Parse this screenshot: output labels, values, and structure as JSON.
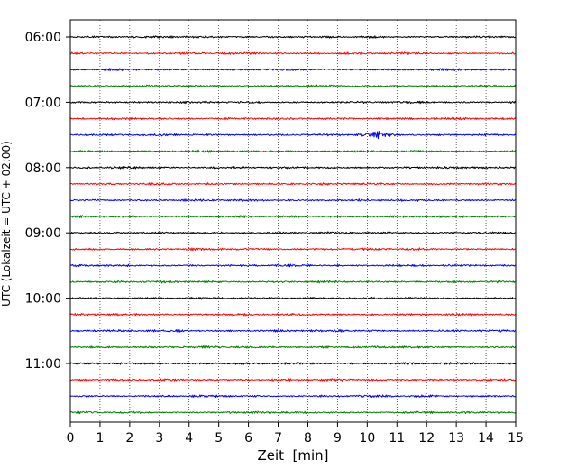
{
  "chart_data": {
    "type": "line",
    "title": "",
    "xlabel": "Zeit  [min]",
    "ylabel": "UTC (Lokalzeit = UTC + 02:00)",
    "xlim": [
      0,
      15
    ],
    "x_ticks": [
      "0",
      "1",
      "2",
      "3",
      "4",
      "5",
      "6",
      "7",
      "8",
      "9",
      "10",
      "11",
      "12",
      "13",
      "14",
      "15"
    ],
    "y_ticks": [
      "06:00",
      "07:00",
      "08:00",
      "09:00",
      "10:00",
      "11:00"
    ],
    "grid": "vertical dotted lines at each minute",
    "legend": "none",
    "trace_interval_min": 15,
    "trace_start": "06:00",
    "trace_colors": [
      "#000000",
      "#ff0000",
      "#0000ff",
      "#008000"
    ],
    "traces": [
      {
        "start": "06:00",
        "color": "#000000",
        "amplitude": 1.0,
        "burst_min": null
      },
      {
        "start": "06:15",
        "color": "#ff0000",
        "amplitude": 1.0,
        "burst_min": null
      },
      {
        "start": "06:30",
        "color": "#0000ff",
        "amplitude": 1.0,
        "burst_min": null
      },
      {
        "start": "06:45",
        "color": "#008000",
        "amplitude": 1.0,
        "burst_min": null
      },
      {
        "start": "07:00",
        "color": "#000000",
        "amplitude": 1.0,
        "burst_min": null
      },
      {
        "start": "07:15",
        "color": "#ff0000",
        "amplitude": 1.0,
        "burst_min": null
      },
      {
        "start": "07:30",
        "color": "#0000ff",
        "amplitude": 1.0,
        "burst_min": [
          9.6,
          11.2
        ]
      },
      {
        "start": "07:45",
        "color": "#008000",
        "amplitude": 1.0,
        "burst_min": null
      },
      {
        "start": "08:00",
        "color": "#000000",
        "amplitude": 1.0,
        "burst_min": null
      },
      {
        "start": "08:15",
        "color": "#ff0000",
        "amplitude": 1.0,
        "burst_min": null
      },
      {
        "start": "08:30",
        "color": "#0000ff",
        "amplitude": 1.0,
        "burst_min": null
      },
      {
        "start": "08:45",
        "color": "#008000",
        "amplitude": 1.0,
        "burst_min": null
      },
      {
        "start": "09:00",
        "color": "#000000",
        "amplitude": 1.0,
        "burst_min": null
      },
      {
        "start": "09:15",
        "color": "#ff0000",
        "amplitude": 1.0,
        "burst_min": null
      },
      {
        "start": "09:30",
        "color": "#0000ff",
        "amplitude": 1.0,
        "burst_min": null
      },
      {
        "start": "09:45",
        "color": "#008000",
        "amplitude": 1.0,
        "burst_min": null
      },
      {
        "start": "10:00",
        "color": "#000000",
        "amplitude": 1.0,
        "burst_min": null
      },
      {
        "start": "10:15",
        "color": "#ff0000",
        "amplitude": 1.0,
        "burst_min": null
      },
      {
        "start": "10:30",
        "color": "#0000ff",
        "amplitude": 1.0,
        "burst_min": null
      },
      {
        "start": "10:45",
        "color": "#008000",
        "amplitude": 1.0,
        "burst_min": null
      },
      {
        "start": "11:00",
        "color": "#000000",
        "amplitude": 1.0,
        "burst_min": null
      },
      {
        "start": "11:15",
        "color": "#ff0000",
        "amplitude": 1.0,
        "burst_min": null
      },
      {
        "start": "11:30",
        "color": "#0000ff",
        "amplitude": 1.0,
        "burst_min": null
      },
      {
        "start": "11:45",
        "color": "#008000",
        "amplitude": 1.0,
        "burst_min": null
      }
    ]
  }
}
